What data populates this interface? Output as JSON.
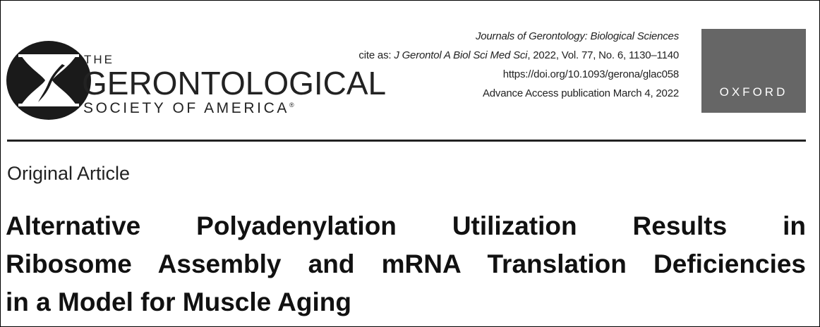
{
  "publisher_logo": {
    "line1": "THE",
    "line2": "GERONTOLOGICAL",
    "line3": "SOCIETY OF AMERICA",
    "mark": "®"
  },
  "citation": {
    "journal": "Journals of Gerontology: Biological Sciences",
    "cite_prefix": "cite as: ",
    "cite_journal": "J Gerontol A Biol Sci Med Sci",
    "cite_details": ", 2022, Vol. 77, No. 6, 1130–1140",
    "doi": "https://doi.org/10.1093/gerona/glac058",
    "advance_access": "Advance Access publication March 4, 2022"
  },
  "oxford_logo": {
    "text": "OXFORD",
    "color": "#666666"
  },
  "article_type": "Original Article",
  "title_lines": [
    "Alternative Polyadenylation Utilization Results in",
    "Ribosome Assembly and mRNA Translation Deficiencies",
    "in a Model for Muscle Aging"
  ]
}
